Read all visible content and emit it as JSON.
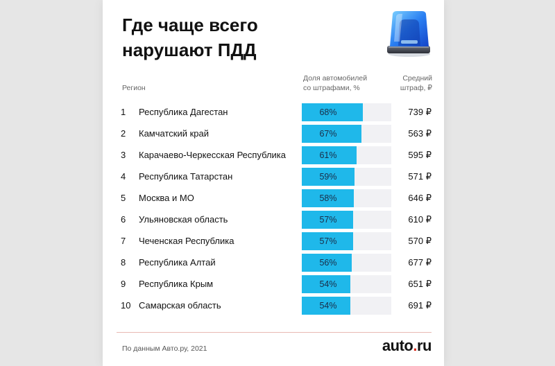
{
  "title_lines": [
    "Где чаще всего",
    "нарушают ПДД"
  ],
  "columns": {
    "region": "Регион",
    "share_lines": [
      "Доля автомобилей",
      "со штрафами, %"
    ],
    "avg_lines": [
      "Средний",
      "штраф, ₽"
    ]
  },
  "icon": "siren-beacon-icon",
  "footer": {
    "source": "По данным Авто.ру, 2021",
    "brand_left": "auto",
    "brand_dot": ".",
    "brand_right": "ru"
  },
  "colors": {
    "bar": "#1fb8ea",
    "track": "#f1f1f4",
    "brand_accent": "#d9291c"
  },
  "chart_data": {
    "type": "table",
    "title": "Где чаще всего нарушают ПДД",
    "xlabel": "Доля автомобилей со штрафами, %",
    "share_max": 100,
    "rows": [
      {
        "rank": "1",
        "region": "Республика Дагестан",
        "share": 68,
        "share_label": "68%",
        "fine": "739 ₽"
      },
      {
        "rank": "2",
        "region": "Камчатский край",
        "share": 67,
        "share_label": "67%",
        "fine": "563 ₽"
      },
      {
        "rank": "3",
        "region": "Карачаево-Черкесская Республика",
        "share": 61,
        "share_label": "61%",
        "fine": "595 ₽"
      },
      {
        "rank": "4",
        "region": "Республика Татарстан",
        "share": 59,
        "share_label": "59%",
        "fine": "571 ₽"
      },
      {
        "rank": "5",
        "region": "Москва и МО",
        "share": 58,
        "share_label": "58%",
        "fine": "646 ₽"
      },
      {
        "rank": "6",
        "region": "Ульяновская область",
        "share": 57,
        "share_label": "57%",
        "fine": "610 ₽"
      },
      {
        "rank": "7",
        "region": "Чеченская Республика",
        "share": 57,
        "share_label": "57%",
        "fine": "570 ₽"
      },
      {
        "rank": "8",
        "region": "Республика Алтай",
        "share": 56,
        "share_label": "56%",
        "fine": "677 ₽"
      },
      {
        "rank": "9",
        "region": "Республика Крым",
        "share": 54,
        "share_label": "54%",
        "fine": "651 ₽"
      },
      {
        "rank": "10",
        "region": "Самарская область",
        "share": 54,
        "share_label": "54%",
        "fine": "691 ₽"
      }
    ]
  }
}
